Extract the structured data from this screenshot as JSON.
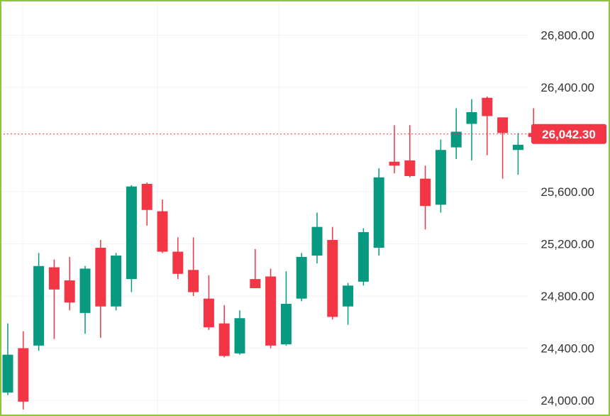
{
  "chart_data": {
    "type": "candlestick",
    "y_ticks": [
      {
        "value": 26800,
        "label": "26,800.00"
      },
      {
        "value": 26400,
        "label": "26,400.00"
      },
      {
        "value": 25600,
        "label": "25,600.00"
      },
      {
        "value": 25200,
        "label": "25,200.00"
      },
      {
        "value": 24800,
        "label": "24,800.00"
      },
      {
        "value": 24400,
        "label": "24,400.00"
      },
      {
        "value": 24000,
        "label": "24,000.00"
      }
    ],
    "ylim": [
      23880,
      27070
    ],
    "grid": true,
    "current_price": {
      "value": 26042.3,
      "label": "26,042.30"
    },
    "colors": {
      "up": "#089981",
      "down": "#f23645",
      "grid": "#f0f3fa",
      "frame": "#8cc63f",
      "price_line": "#f23645"
    },
    "candles": [
      {
        "o": 24060,
        "h": 24590,
        "l": 24040,
        "c": 24350
      },
      {
        "o": 24400,
        "h": 24530,
        "l": 23930,
        "c": 23990
      },
      {
        "o": 24420,
        "h": 25130,
        "l": 24380,
        "c": 25030
      },
      {
        "o": 25020,
        "h": 25080,
        "l": 24470,
        "c": 24850
      },
      {
        "o": 24920,
        "h": 25100,
        "l": 24690,
        "c": 24750
      },
      {
        "o": 24670,
        "h": 25030,
        "l": 24510,
        "c": 25010
      },
      {
        "o": 25170,
        "h": 25230,
        "l": 24480,
        "c": 24720
      },
      {
        "o": 24720,
        "h": 25130,
        "l": 24690,
        "c": 25110
      },
      {
        "o": 24930,
        "h": 25650,
        "l": 24830,
        "c": 25640
      },
      {
        "o": 25660,
        "h": 25670,
        "l": 25340,
        "c": 25460
      },
      {
        "o": 25450,
        "h": 25540,
        "l": 25130,
        "c": 25140
      },
      {
        "o": 25140,
        "h": 25250,
        "l": 24930,
        "c": 24970
      },
      {
        "o": 25000,
        "h": 25250,
        "l": 24800,
        "c": 24830
      },
      {
        "o": 24780,
        "h": 24960,
        "l": 24540,
        "c": 24560
      },
      {
        "o": 24590,
        "h": 24730,
        "l": 24330,
        "c": 24340
      },
      {
        "o": 24360,
        "h": 24690,
        "l": 24350,
        "c": 24630
      },
      {
        "o": 24930,
        "h": 25160,
        "l": 24860,
        "c": 24860
      },
      {
        "o": 24950,
        "h": 25010,
        "l": 24400,
        "c": 24420
      },
      {
        "o": 24430,
        "h": 24990,
        "l": 24420,
        "c": 24740
      },
      {
        "o": 24780,
        "h": 25130,
        "l": 24760,
        "c": 25100
      },
      {
        "o": 25110,
        "h": 25440,
        "l": 25050,
        "c": 25330
      },
      {
        "o": 25230,
        "h": 25330,
        "l": 24620,
        "c": 24640
      },
      {
        "o": 24720,
        "h": 24900,
        "l": 24580,
        "c": 24880
      },
      {
        "o": 24910,
        "h": 25320,
        "l": 24880,
        "c": 25290
      },
      {
        "o": 25170,
        "h": 25780,
        "l": 25110,
        "c": 25710
      },
      {
        "o": 25830,
        "h": 26110,
        "l": 25740,
        "c": 25800
      },
      {
        "o": 25840,
        "h": 26110,
        "l": 25710,
        "c": 25720
      },
      {
        "o": 25700,
        "h": 25800,
        "l": 25310,
        "c": 25490
      },
      {
        "o": 25500,
        "h": 26000,
        "l": 25440,
        "c": 25920
      },
      {
        "o": 25940,
        "h": 26240,
        "l": 25850,
        "c": 26060
      },
      {
        "o": 26120,
        "h": 26310,
        "l": 25840,
        "c": 26210
      },
      {
        "o": 26320,
        "h": 26330,
        "l": 25880,
        "c": 26180
      },
      {
        "o": 26170,
        "h": 26170,
        "l": 25700,
        "c": 26050
      },
      {
        "o": 25920,
        "h": 26050,
        "l": 25730,
        "c": 25960
      },
      {
        "o": 26050,
        "h": 26240,
        "l": 26000,
        "c": 26020
      }
    ]
  }
}
